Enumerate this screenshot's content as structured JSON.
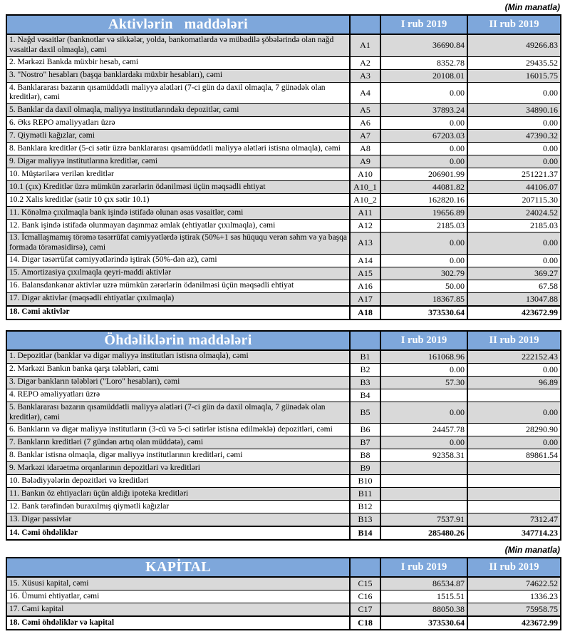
{
  "unit_note": "(Min manatla)",
  "colors": {
    "header_blue": "#7EA7DB",
    "row_shade": "#D9D9D9",
    "header_text": "#FFFFFF",
    "border": "#000000"
  },
  "tables": [
    {
      "id": "assets",
      "title": "Aktivlərin   maddələri",
      "col1": "I rub 2019",
      "col2": "II rub 2019",
      "rows": [
        {
          "label": "1. Nağd vəsaitlər (banknotlar və sikkələr, yolda, bankomatlarda və mübadilə şöbələrində olan nağd vəsaitlər daxil olmaqla), cəmi",
          "code": "A1",
          "v1": "36690.84",
          "v2": "49266.83",
          "shade": true,
          "bold": false
        },
        {
          "label": "2. Mərkəzi Bankda müxbir hesab, cəmi",
          "code": "A2",
          "v1": "8352.78",
          "v2": "29435.52",
          "shade": false,
          "bold": false
        },
        {
          "label": "3. \"Nostro\" hesabları (başqa banklardakı müxbir hesabları), cəmi",
          "code": "A3",
          "v1": "20108.01",
          "v2": "16015.75",
          "shade": true,
          "bold": false
        },
        {
          "label": "4. Banklararası bazarın qısamüddətli maliyyə alətləri (7-ci gün də daxil olmaqla, 7 günədək olan kreditlər), cəmi",
          "code": "A4",
          "v1": "0.00",
          "v2": "0.00",
          "shade": false,
          "bold": false
        },
        {
          "label": "5. Banklar da daxil olmaqla, maliyyə institutlarındakı depozitlər, cəmi",
          "code": "A5",
          "v1": "37893.24",
          "v2": "34890.16",
          "shade": true,
          "bold": false
        },
        {
          "label": "6. Əks REPO əməliyyatları üzrə",
          "code": "A6",
          "v1": "0.00",
          "v2": "0.00",
          "shade": false,
          "bold": false
        },
        {
          "label": "7. Qiymətli kağızlar, cəmi",
          "code": "A7",
          "v1": "67203.03",
          "v2": "47390.32",
          "shade": true,
          "bold": false
        },
        {
          "label": "8. Banklara kreditlər (5-ci sətir üzrə banklararası qısamüddətli maliyyə alətləri istisna olmaqla), cəmi",
          "code": "A8",
          "v1": "0.00",
          "v2": "0.00",
          "shade": false,
          "bold": false
        },
        {
          "label": "9. Digər maliyyə institutlarına kreditlər, cəmi",
          "code": "A9",
          "v1": "0.00",
          "v2": "0.00",
          "shade": true,
          "bold": false
        },
        {
          "label": "10. Müştərilərə verilən kreditlər",
          "code": "A10",
          "v1": "206901.99",
          "v2": "251221.37",
          "shade": false,
          "bold": false
        },
        {
          "label": "10.1 (çıx) Kreditlər üzrə mümkün zərərlərin ödənilməsi üçün məqsədli ehtiyat",
          "code": "A10_1",
          "v1": "44081.82",
          "v2": "44106.07",
          "shade": true,
          "bold": false
        },
        {
          "label": "10.2 Xalis kreditlər (sətir 10 çıx sətir 10.1)",
          "code": "A10_2",
          "v1": "162820.16",
          "v2": "207115.30",
          "shade": false,
          "bold": false
        },
        {
          "label": "11. Könəlmə çıxılmaqla bank işində istifadə olunan əsas vəsaitlər, cəmi",
          "code": "A11",
          "v1": "19656.89",
          "v2": "24024.52",
          "shade": true,
          "bold": false
        },
        {
          "label": "12. Bank işində istifadə olunmayan daşınmaz əmlak (ehtiyatlar çıxılmaqla), cəmi",
          "code": "A12",
          "v1": "2185.03",
          "v2": "2185.03",
          "shade": false,
          "bold": false
        },
        {
          "label": "13. İcmallaşmamış törəmə təsərrüfat cəmiyyətlərdə iştirak (50%+1 səs hüququ verən səhm və ya başqa formada törəməsidirsə), cəmi",
          "code": "A13",
          "v1": "0.00",
          "v2": "0.00",
          "shade": true,
          "bold": false
        },
        {
          "label": "14. Digər təsərrüfat cəmiyyətlərində iştirak (50%-dən az), cəmi",
          "code": "A14",
          "v1": "0.00",
          "v2": "0.00",
          "shade": false,
          "bold": false
        },
        {
          "label": "15. Amortizasiya çıxılmaqla qeyri-maddi aktivlər",
          "code": "A15",
          "v1": "302.79",
          "v2": "369.27",
          "shade": true,
          "bold": false
        },
        {
          "label": "16. Balansdankənar aktivlər uzrə mümkün zərərlərin ödənilməsi üçün məqsədli ehtiyat",
          "code": "A16",
          "v1": "50.00",
          "v2": "67.58",
          "shade": false,
          "bold": false
        },
        {
          "label": "17. Digər aktivlər (məqsədli ehtiyatlar çıxılmaqla)",
          "code": "A17",
          "v1": "18367.85",
          "v2": "13047.88",
          "shade": true,
          "bold": false
        },
        {
          "label": "18. Cəmi aktivlər",
          "code": "A18",
          "v1": "373530.64",
          "v2": "423672.99",
          "shade": false,
          "bold": true
        }
      ]
    },
    {
      "id": "liabilities",
      "title": "Öhdəliklərin maddələri",
      "col1": "I rub 2019",
      "col2": "II rub 2019",
      "rows": [
        {
          "label": "1. Depozitlər (banklar və digər maliyyə institutları istisna olmaqla), cəmi",
          "code": "B1",
          "v1": "161068.96",
          "v2": "222152.43",
          "shade": true,
          "bold": false
        },
        {
          "label": "2. Mərkəzi Bankın banka qarşı tələbləri, cəmi",
          "code": "B2",
          "v1": "0.00",
          "v2": "0.00",
          "shade": false,
          "bold": false
        },
        {
          "label": "3. Digər bankların tələbləri (\"Loro\" hesabları), cəmi",
          "code": "B3",
          "v1": "57.30",
          "v2": "96.89",
          "shade": true,
          "bold": false
        },
        {
          "label": "4. REPO əməliyyatları  üzrə",
          "code": "B4",
          "v1": "",
          "v2": "",
          "shade": false,
          "bold": false
        },
        {
          "label": "5. Banklararası bazarın qısamüddətli maliyyə alətləri (7-ci gün də daxil olmaqla, 7 günədək olan kreditlər), cəmi",
          "code": "B5",
          "v1": "0.00",
          "v2": "0.00",
          "shade": true,
          "bold": false
        },
        {
          "label": "6. Bankların və digər maliyyə institutların (3-cü və 5-ci sətirlər istisna edilməklə) depozitləri, cəmi",
          "code": "B6",
          "v1": "24457.78",
          "v2": "28290.90",
          "shade": false,
          "bold": false
        },
        {
          "label": "7. Bankların kreditləri (7 gündən artıq olan müddətə), cəmi",
          "code": "B7",
          "v1": "0.00",
          "v2": "0.00",
          "shade": true,
          "bold": false
        },
        {
          "label": "8. Banklar istisna olmaqla, digər maliyyə institutlarının kreditləri, cəmi",
          "code": "B8",
          "v1": "92358.31",
          "v2": "89861.54",
          "shade": false,
          "bold": false
        },
        {
          "label": "9. Mərkəzi idarəetmə orqanlarının depozitləri və kreditləri",
          "code": "B9",
          "v1": "",
          "v2": "",
          "shade": true,
          "bold": false
        },
        {
          "label": "10. Bələdiyyələrin depozitləri və kreditləri",
          "code": "B10",
          "v1": "",
          "v2": "",
          "shade": false,
          "bold": false
        },
        {
          "label": "11. Bankın öz ehtiyacları üçün aldığı ipoteka kreditləri",
          "code": "B11",
          "v1": "",
          "v2": "",
          "shade": true,
          "bold": false
        },
        {
          "label": "12. Bank tərəfindən buraxılmış qiymətli kağızlar",
          "code": "B12",
          "v1": "",
          "v2": "",
          "shade": false,
          "bold": false
        },
        {
          "label": "13. Digər passivlər",
          "code": "B13",
          "v1": "7537.91",
          "v2": "7312.47",
          "shade": true,
          "bold": false
        },
        {
          "label": "14. Cəmi öhdəliklər",
          "code": "B14",
          "v1": "285480.26",
          "v2": "347714.23",
          "shade": false,
          "bold": true
        }
      ]
    },
    {
      "id": "capital",
      "title": "KAPİTAL",
      "col1": "I rub 2019",
      "col2": "II rub 2019",
      "rows": [
        {
          "label": "15. Xüsusi kapital, cəmi",
          "code": "C15",
          "v1": "86534.87",
          "v2": "74622.52",
          "shade": true,
          "bold": false
        },
        {
          "label": "16. Ümumi ehtiyatlar, cəmi",
          "code": "C16",
          "v1": "1515.51",
          "v2": "1336.23",
          "shade": false,
          "bold": false
        },
        {
          "label": "17. Cəmi kapital",
          "code": "C17",
          "v1": "88050.38",
          "v2": "75958.75",
          "shade": true,
          "bold": false
        },
        {
          "label": "18. Cəmi öhdəliklər və kapital",
          "code": "C18",
          "v1": "373530.64",
          "v2": "423672.99",
          "shade": false,
          "bold": true
        }
      ]
    }
  ]
}
